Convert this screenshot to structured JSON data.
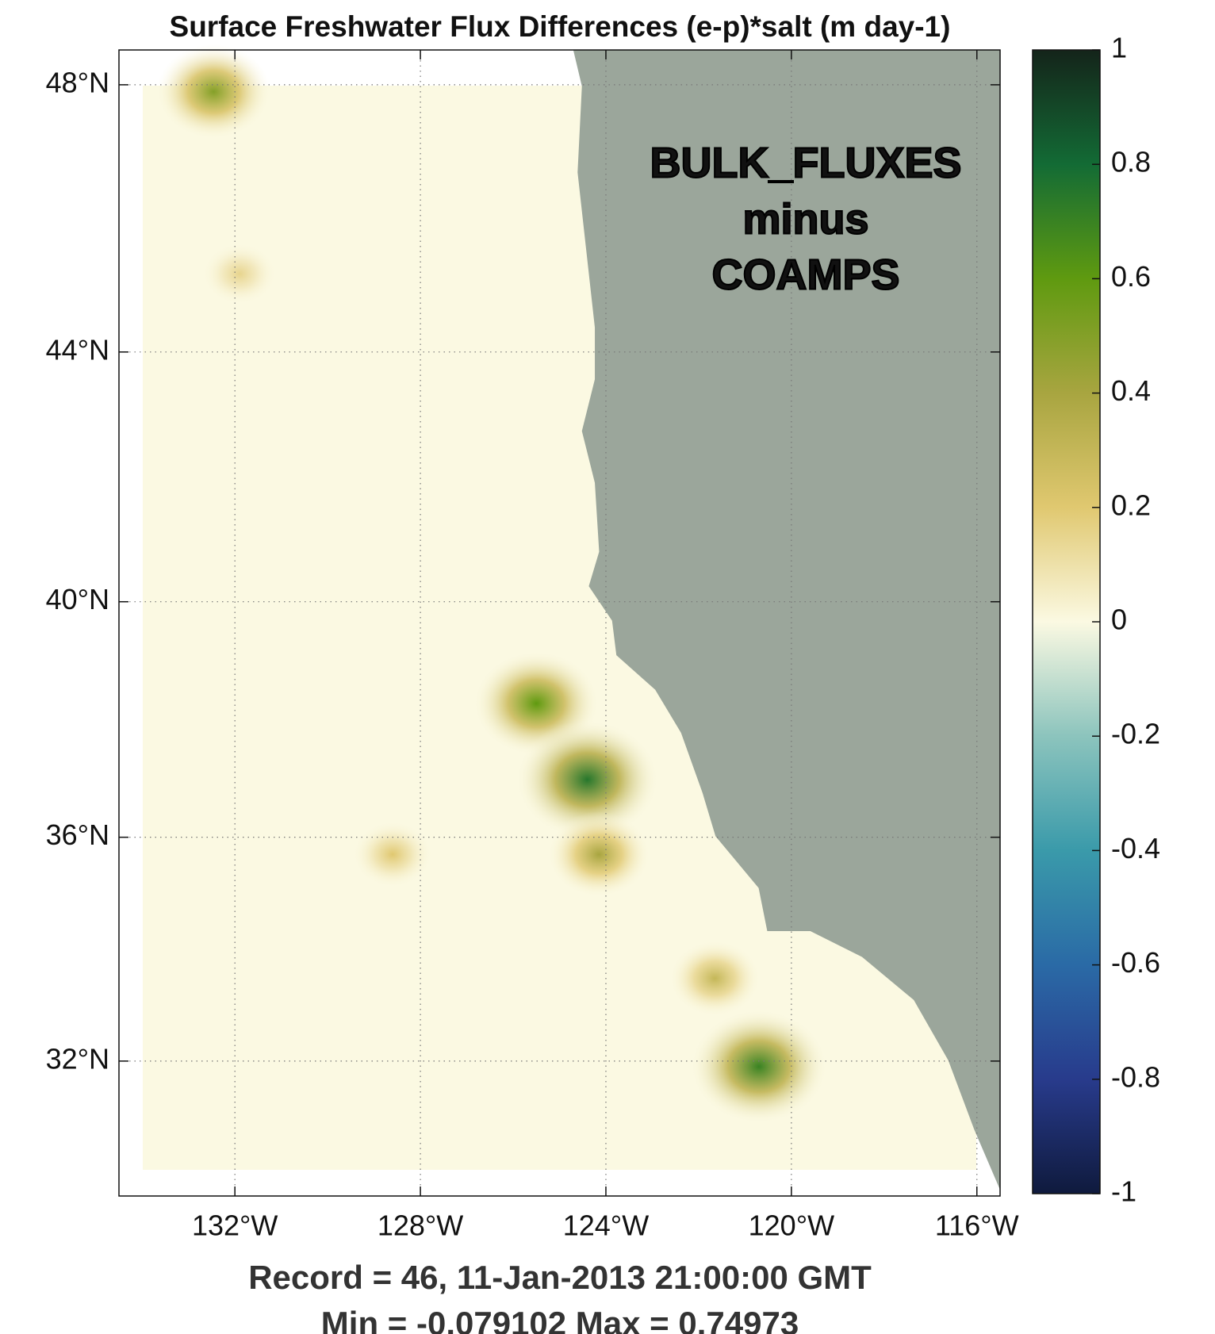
{
  "chart_data": {
    "type": "map",
    "title": "Surface Freshwater Flux Differences (e-p)*salt (m day-1)",
    "annotation": [
      "BULK_FLUXES",
      "minus",
      "COAMPS"
    ],
    "footer": [
      "Record = 46,  11-Jan-2013 21:00:00 GMT",
      "Min = -0.079102  Max = 0.74973"
    ],
    "projection": "mercator",
    "xlim": [
      -134.5,
      -115.5
    ],
    "ylim": [
      29.5,
      48.5
    ],
    "xticks": [
      {
        "value": -132,
        "label": "132°W"
      },
      {
        "value": -128,
        "label": "128°W"
      },
      {
        "value": -124,
        "label": "124°W"
      },
      {
        "value": -120,
        "label": "120°W"
      },
      {
        "value": -116,
        "label": "116°W"
      }
    ],
    "yticks": [
      {
        "value": 32,
        "label": "32°N"
      },
      {
        "value": 36,
        "label": "36°N"
      },
      {
        "value": 40,
        "label": "40°N"
      },
      {
        "value": 44,
        "label": "44°N"
      },
      {
        "value": 48,
        "label": "48°N"
      }
    ],
    "grid": true,
    "land_color": "#9ba69b",
    "ocean_color": "#fbf9e2",
    "colorbar": {
      "clim": [
        -1,
        1
      ],
      "ticks": [
        -1,
        -0.8,
        -0.6,
        -0.4,
        -0.2,
        0,
        0.2,
        0.4,
        0.6,
        0.8,
        1
      ],
      "colors": [
        "#0f1a3d",
        "#283b8c",
        "#2a6aa6",
        "#3a9aaa",
        "#8cc4bd",
        "#fbf9e2",
        "#e0c870",
        "#a8a540",
        "#5f9a10",
        "#136b35",
        "#14241a"
      ]
    },
    "hotspots": [
      {
        "lon": -132.46,
        "lat": 47.9,
        "value": 0.5
      },
      {
        "lon": -131.9,
        "lat": 45.2,
        "value": 0.15
      },
      {
        "lon": -125.5,
        "lat": 38.3,
        "value": 0.6
      },
      {
        "lon": -124.4,
        "lat": 37.0,
        "value": 0.75
      },
      {
        "lon": -124.15,
        "lat": 35.7,
        "value": 0.4
      },
      {
        "lon": -128.6,
        "lat": 35.7,
        "value": 0.2
      },
      {
        "lon": -121.65,
        "lat": 33.5,
        "value": 0.3
      },
      {
        "lon": -120.7,
        "lat": 31.9,
        "value": 0.7
      }
    ]
  }
}
